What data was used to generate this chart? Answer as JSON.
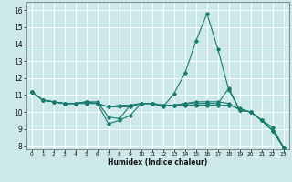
{
  "xlabel": "Humidex (Indice chaleur)",
  "xlim": [
    -0.5,
    23.5
  ],
  "ylim": [
    7.8,
    16.5
  ],
  "yticks": [
    8,
    9,
    10,
    11,
    12,
    13,
    14,
    15,
    16
  ],
  "xticks": [
    0,
    1,
    2,
    3,
    4,
    5,
    6,
    7,
    8,
    9,
    10,
    11,
    12,
    13,
    14,
    15,
    16,
    17,
    18,
    19,
    20,
    21,
    22,
    23
  ],
  "background_color": "#cce8e8",
  "grid_color": "#ffffff",
  "line_color": "#1a7a6e",
  "series": [
    {
      "x": [
        0,
        1,
        2,
        3,
        4,
        5,
        6,
        7,
        8,
        9,
        10,
        11,
        12,
        13,
        14,
        15,
        16,
        17,
        18,
        19,
        20,
        21,
        22,
        23
      ],
      "y": [
        11.2,
        10.7,
        10.6,
        10.5,
        10.5,
        10.6,
        10.5,
        9.3,
        9.5,
        9.8,
        10.5,
        10.5,
        10.3,
        11.1,
        12.3,
        14.2,
        15.8,
        13.7,
        11.3,
        10.1,
        10.0,
        9.5,
        9.1,
        7.9
      ]
    },
    {
      "x": [
        0,
        1,
        2,
        3,
        4,
        5,
        6,
        7,
        8,
        9,
        10,
        11,
        12,
        13,
        14,
        15,
        16,
        17,
        18,
        19,
        20,
        21,
        22,
        23
      ],
      "y": [
        11.2,
        10.7,
        10.6,
        10.5,
        10.5,
        10.6,
        10.6,
        9.7,
        9.6,
        10.4,
        10.5,
        10.5,
        10.4,
        10.4,
        10.4,
        10.4,
        10.4,
        10.4,
        10.4,
        10.2,
        10.0,
        9.5,
        8.9,
        7.9
      ]
    },
    {
      "x": [
        0,
        1,
        2,
        3,
        4,
        5,
        6,
        7,
        8,
        9,
        10,
        11,
        12,
        13,
        14,
        15,
        16,
        17,
        18,
        19,
        20,
        21,
        22,
        23
      ],
      "y": [
        11.2,
        10.7,
        10.6,
        10.5,
        10.5,
        10.5,
        10.5,
        10.3,
        10.3,
        10.3,
        10.5,
        10.5,
        10.4,
        10.4,
        10.5,
        10.5,
        10.5,
        10.5,
        11.4,
        10.1,
        10.0,
        9.5,
        8.9,
        7.9
      ]
    },
    {
      "x": [
        0,
        1,
        2,
        3,
        4,
        5,
        6,
        7,
        8,
        9,
        10,
        11,
        12,
        13,
        14,
        15,
        16,
        17,
        18,
        19,
        20,
        21,
        22,
        23
      ],
      "y": [
        11.2,
        10.7,
        10.6,
        10.5,
        10.5,
        10.6,
        10.5,
        10.3,
        10.4,
        10.4,
        10.5,
        10.5,
        10.4,
        10.4,
        10.5,
        10.6,
        10.6,
        10.6,
        10.5,
        10.1,
        10.0,
        9.5,
        8.9,
        7.9
      ]
    }
  ]
}
